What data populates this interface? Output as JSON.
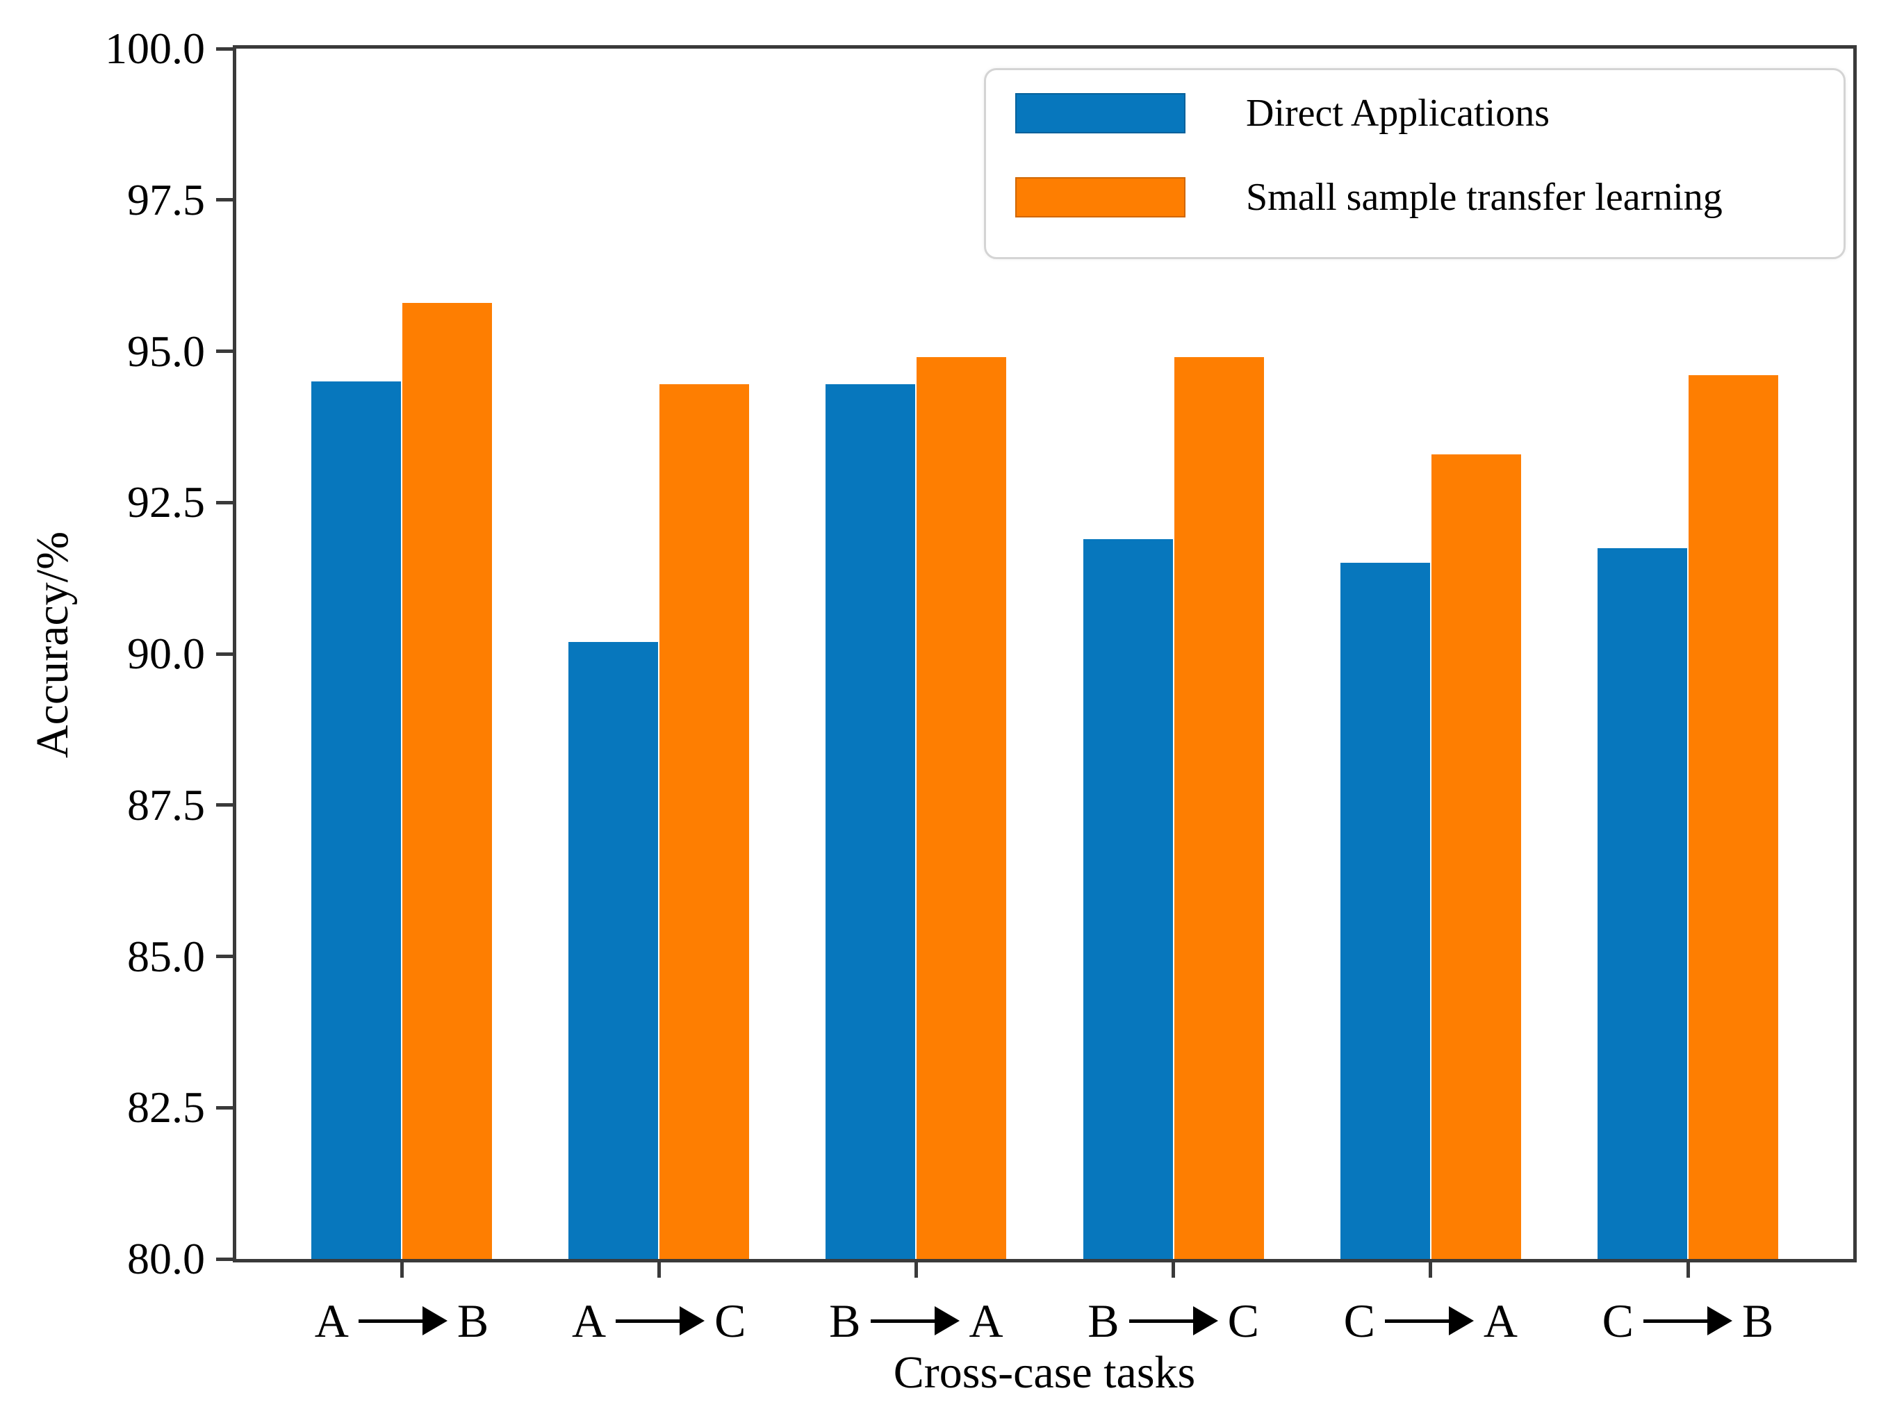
{
  "chart_data": {
    "type": "bar",
    "title": "",
    "categories": [
      "A→B",
      "A→C",
      "B→A",
      "B→C",
      "C→A",
      "C→B"
    ],
    "series": [
      {
        "name": "Direct Applications",
        "color": "#0777bd",
        "values": [
          94.5,
          90.2,
          94.45,
          91.9,
          91.5,
          91.75
        ]
      },
      {
        "name": "Small sample transfer learning",
        "color": "#fe7e01",
        "values": [
          95.8,
          94.45,
          94.9,
          94.9,
          93.3,
          94.6
        ]
      }
    ],
    "xlabel": "Cross-case tasks",
    "ylabel": "Accuracy/%",
    "ylim": [
      80.0,
      100.0
    ],
    "yticks": [
      80.0,
      82.5,
      85.0,
      87.5,
      90.0,
      92.5,
      95.0,
      97.5,
      100.0
    ],
    "ytick_decimals": 1,
    "grid": false,
    "legend_position": "upper right"
  },
  "style_colors": {
    "spine": "#3a3a3a",
    "background": "#ffffff",
    "text": "#000000",
    "legend_border": "#d4d4d4"
  }
}
